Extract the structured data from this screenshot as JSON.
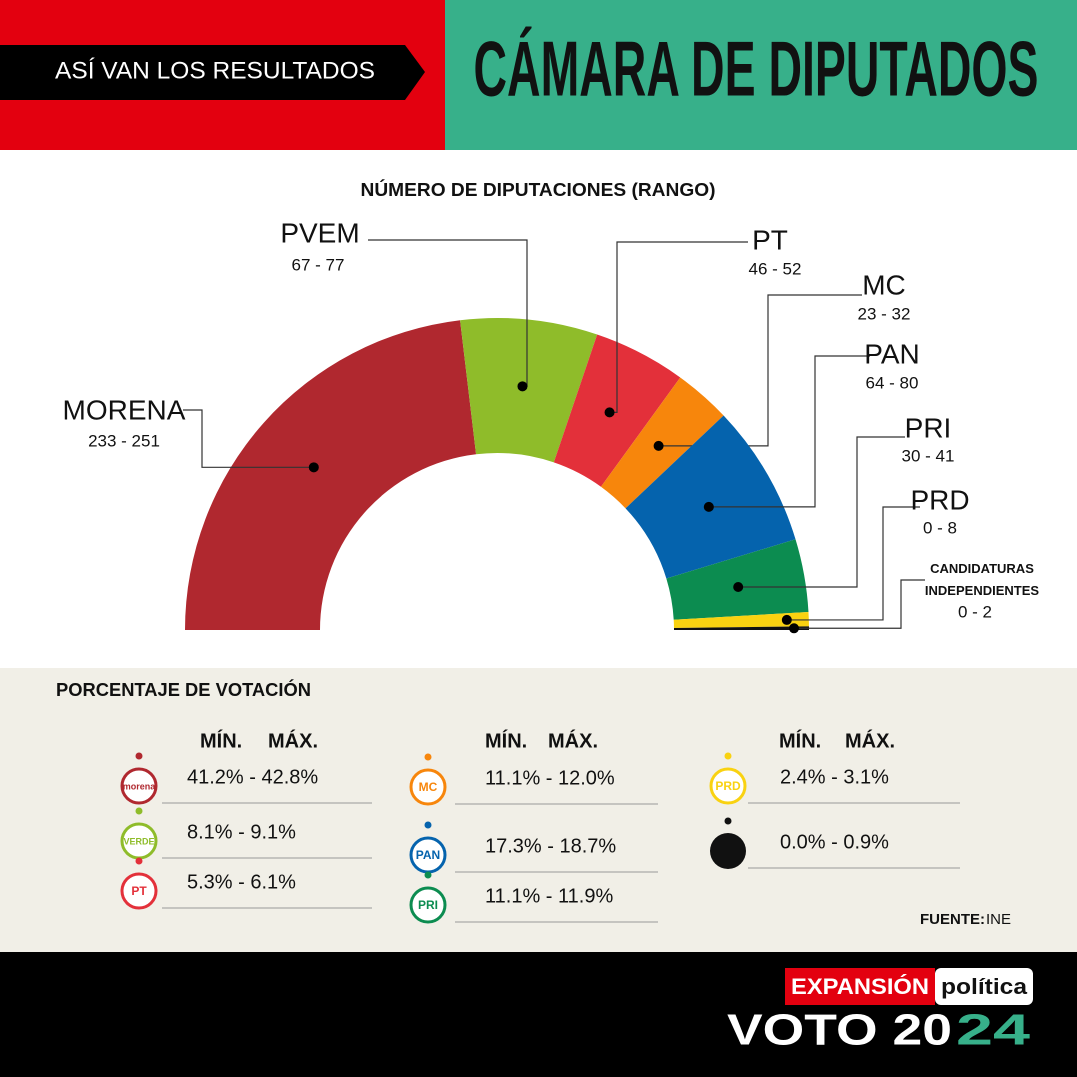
{
  "header": {
    "kicker": "ASÍ VAN LOS RESULTADOS",
    "title": "CÁMARA DE DIPUTADOS"
  },
  "chart_data": {
    "type": "semicircle",
    "title": "NÚMERO DE DIPUTACIONES (RANGO)",
    "categories": [
      "MORENA",
      "PVEM",
      "PT",
      "MC",
      "PAN",
      "PRI",
      "PRD",
      "CANDIDATURAS INDEPENDIENTES"
    ],
    "min": [
      233,
      67,
      46,
      23,
      64,
      30,
      0,
      0
    ],
    "max": [
      251,
      77,
      52,
      32,
      80,
      41,
      8,
      2
    ],
    "range_labels": [
      "233 - 251",
      "67 - 77",
      "46 - 52",
      "23 - 32",
      "64 - 80",
      "30 - 41",
      "0 - 8",
      "0 - 2"
    ],
    "colors": [
      "#b0282f",
      "#8fbc2a",
      "#e3303a",
      "#f7860c",
      "#0563ad",
      "#0c8c50",
      "#f9d211",
      "#111111"
    ]
  },
  "votes": {
    "title": "PORCENTAJE DE VOTACIÓN",
    "min_header": "MÍN.",
    "max_header": "MÁX.",
    "columns": [
      {
        "rows": [
          {
            "logo": "morena",
            "color": "#b0282f",
            "range": "41.2% - 42.8%"
          },
          {
            "logo": "VERDE",
            "color": "#8fbc2a",
            "range": "8.1% - 9.1%"
          },
          {
            "logo": "PT",
            "color": "#e3303a",
            "range": "5.3% - 6.1%"
          }
        ]
      },
      {
        "rows": [
          {
            "logo": "MC",
            "color": "#f7860c",
            "range": "11.1% - 12.0%"
          },
          {
            "logo": "PAN",
            "color": "#0563ad",
            "range": "17.3% - 18.7%"
          },
          {
            "logo": "PRI",
            "color": "#0c8c50",
            "range": "11.1% - 11.9%"
          }
        ]
      },
      {
        "rows": [
          {
            "logo": "PRD",
            "color": "#f9d211",
            "range": "2.4% - 3.1%"
          },
          {
            "logo": null,
            "color": "#111111",
            "range": "0.0% - 0.9%"
          }
        ]
      }
    ]
  },
  "source": {
    "label": "FUENTE:",
    "value": "INE"
  },
  "footer": {
    "brand": "EXPANSIÓN",
    "brand2": "política",
    "campaign": "VOTO 20",
    "campaign_year": "24"
  }
}
